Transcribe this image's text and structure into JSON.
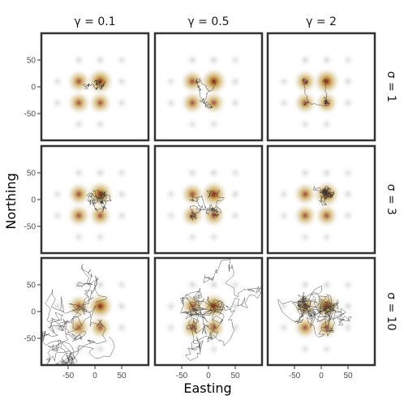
{
  "chart_data": {
    "type": "facet-grid",
    "title": "",
    "xlabel": "Easting",
    "ylabel": "Northing",
    "xlim": [
      -100,
      100
    ],
    "ylim": [
      -100,
      100
    ],
    "x_ticks": [
      "-50",
      "0",
      "50"
    ],
    "x_tick_values": [
      -50,
      0,
      50
    ],
    "y_ticks": [
      "50",
      "0",
      "-50"
    ],
    "y_tick_values": [
      50,
      0,
      -50
    ],
    "column_labels": [
      "γ = 0.1",
      "γ = 0.5",
      "γ = 2"
    ],
    "gamma_values": [
      0.1,
      0.5,
      2
    ],
    "row_labels": [
      "σ = 1",
      "σ = 3",
      "σ = 10"
    ],
    "sigma_values": [
      1,
      3,
      10
    ],
    "patches": [
      {
        "x": -30,
        "y": 10,
        "strength": 0.6
      },
      {
        "x": 10,
        "y": 10,
        "strength": 1.0
      },
      {
        "x": 10,
        "y": -30,
        "strength": 0.55
      },
      {
        "x": -30,
        "y": -30,
        "strength": 0.55
      },
      {
        "x": -30,
        "y": 50,
        "strength": 0.18
      },
      {
        "x": 10,
        "y": 50,
        "strength": 0.2
      },
      {
        "x": 50,
        "y": 10,
        "strength": 0.18
      },
      {
        "x": 50,
        "y": -30,
        "strength": 0.15
      },
      {
        "x": 50,
        "y": 50,
        "strength": 0.1
      },
      {
        "x": -30,
        "y": -70,
        "strength": 0.12
      },
      {
        "x": 10,
        "y": -70,
        "strength": 0.12
      },
      {
        "x": -70,
        "y": 10,
        "strength": 0.12
      },
      {
        "x": -70,
        "y": -30,
        "strength": 0.12
      }
    ],
    "colors": {
      "panel_border": "#333333",
      "track": "#333333",
      "patch_core": "#8b1a1a",
      "patch_mid": "#c9a040",
      "patch_faint": "#b0b0b0"
    }
  }
}
